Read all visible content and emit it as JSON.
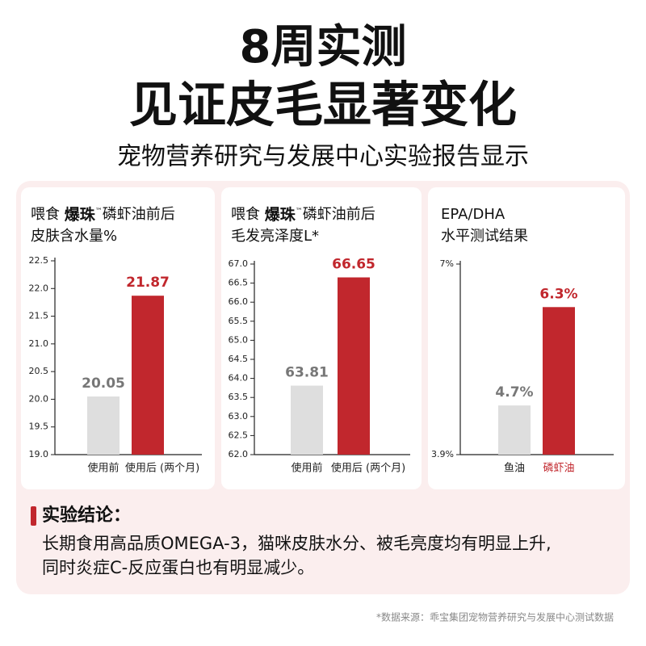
{
  "header": {
    "line1": "8周实测",
    "line2": "见证皮毛显著变化",
    "subtitle": "宠物营养研究与发展中心实验报告显示"
  },
  "chart_data": [
    {
      "type": "bar",
      "title": [
        [
          "喂食 ",
          "爆珠",
          "™",
          "磷虾油前后"
        ],
        [
          "皮肤含水量%"
        ]
      ],
      "categories": [
        "使用前",
        "使用后 (两个月)"
      ],
      "values": [
        20.05,
        21.87
      ],
      "colors": [
        "#dedede",
        "#c1272d"
      ],
      "label_colors": [
        "#777777",
        "#c1272d"
      ],
      "category_colors": [
        "#222222",
        "#222222"
      ],
      "ylim": [
        19,
        22.5
      ],
      "yticks": [
        {
          "value": 19,
          "label": "19.0"
        },
        19.5,
        {
          "value": 20,
          "label": "20.0"
        },
        20.5,
        {
          "value": 21,
          "label": "21.0"
        },
        21.5,
        {
          "value": 22,
          "label": "22.0"
        },
        22.5
      ]
    },
    {
      "type": "bar",
      "title": [
        [
          "喂食 ",
          "爆珠",
          "™",
          "磷虾油前后"
        ],
        [
          "毛发亮泽度L*"
        ]
      ],
      "categories": [
        "使用前",
        "使用后 (两个月)"
      ],
      "values": [
        63.81,
        66.65
      ],
      "colors": [
        "#dedede",
        "#c1272d"
      ],
      "label_colors": [
        "#777777",
        "#c1272d"
      ],
      "category_colors": [
        "#222222",
        "#222222"
      ],
      "ylim": [
        62,
        67
      ],
      "yticks": [
        {
          "value": 62,
          "label": "62.0"
        },
        62.5,
        {
          "value": 63,
          "label": "63.0"
        },
        63.5,
        {
          "value": 64,
          "label": "64.0"
        },
        64.5,
        {
          "value": 65,
          "label": "65.0"
        },
        65.5,
        {
          "value": 66,
          "label": "66.0"
        },
        66.5,
        {
          "value": 67,
          "label": "67.0"
        }
      ]
    },
    {
      "type": "bar",
      "title": [
        [
          "EPA/DHA"
        ],
        [
          "水平测试结果"
        ]
      ],
      "categories": [
        "鱼油",
        "磷虾油"
      ],
      "values": [
        4.7,
        6.3
      ],
      "value_labels": [
        "4.7%",
        "6.3%"
      ],
      "colors": [
        "#dedede",
        "#c1272d"
      ],
      "label_colors": [
        "#777777",
        "#c1272d"
      ],
      "category_colors": [
        "#222222",
        "#c1272d"
      ],
      "ylim": [
        3.9,
        7
      ],
      "yticks": [
        {
          "value": 3.9,
          "label": "3.9%"
        },
        {
          "value": 7,
          "label": "7%"
        }
      ]
    }
  ],
  "conclusion": {
    "heading": "实验结论：",
    "lines": [
      "长期食用高品质OMEGA-3，猫咪皮肤水分、被毛亮度均有明显上升,",
      "同时炎症C-反应蛋白也有明显减少。"
    ]
  },
  "footnote": "*数据来源：乖宝集团宠物营养研究与发展中心测试数据"
}
